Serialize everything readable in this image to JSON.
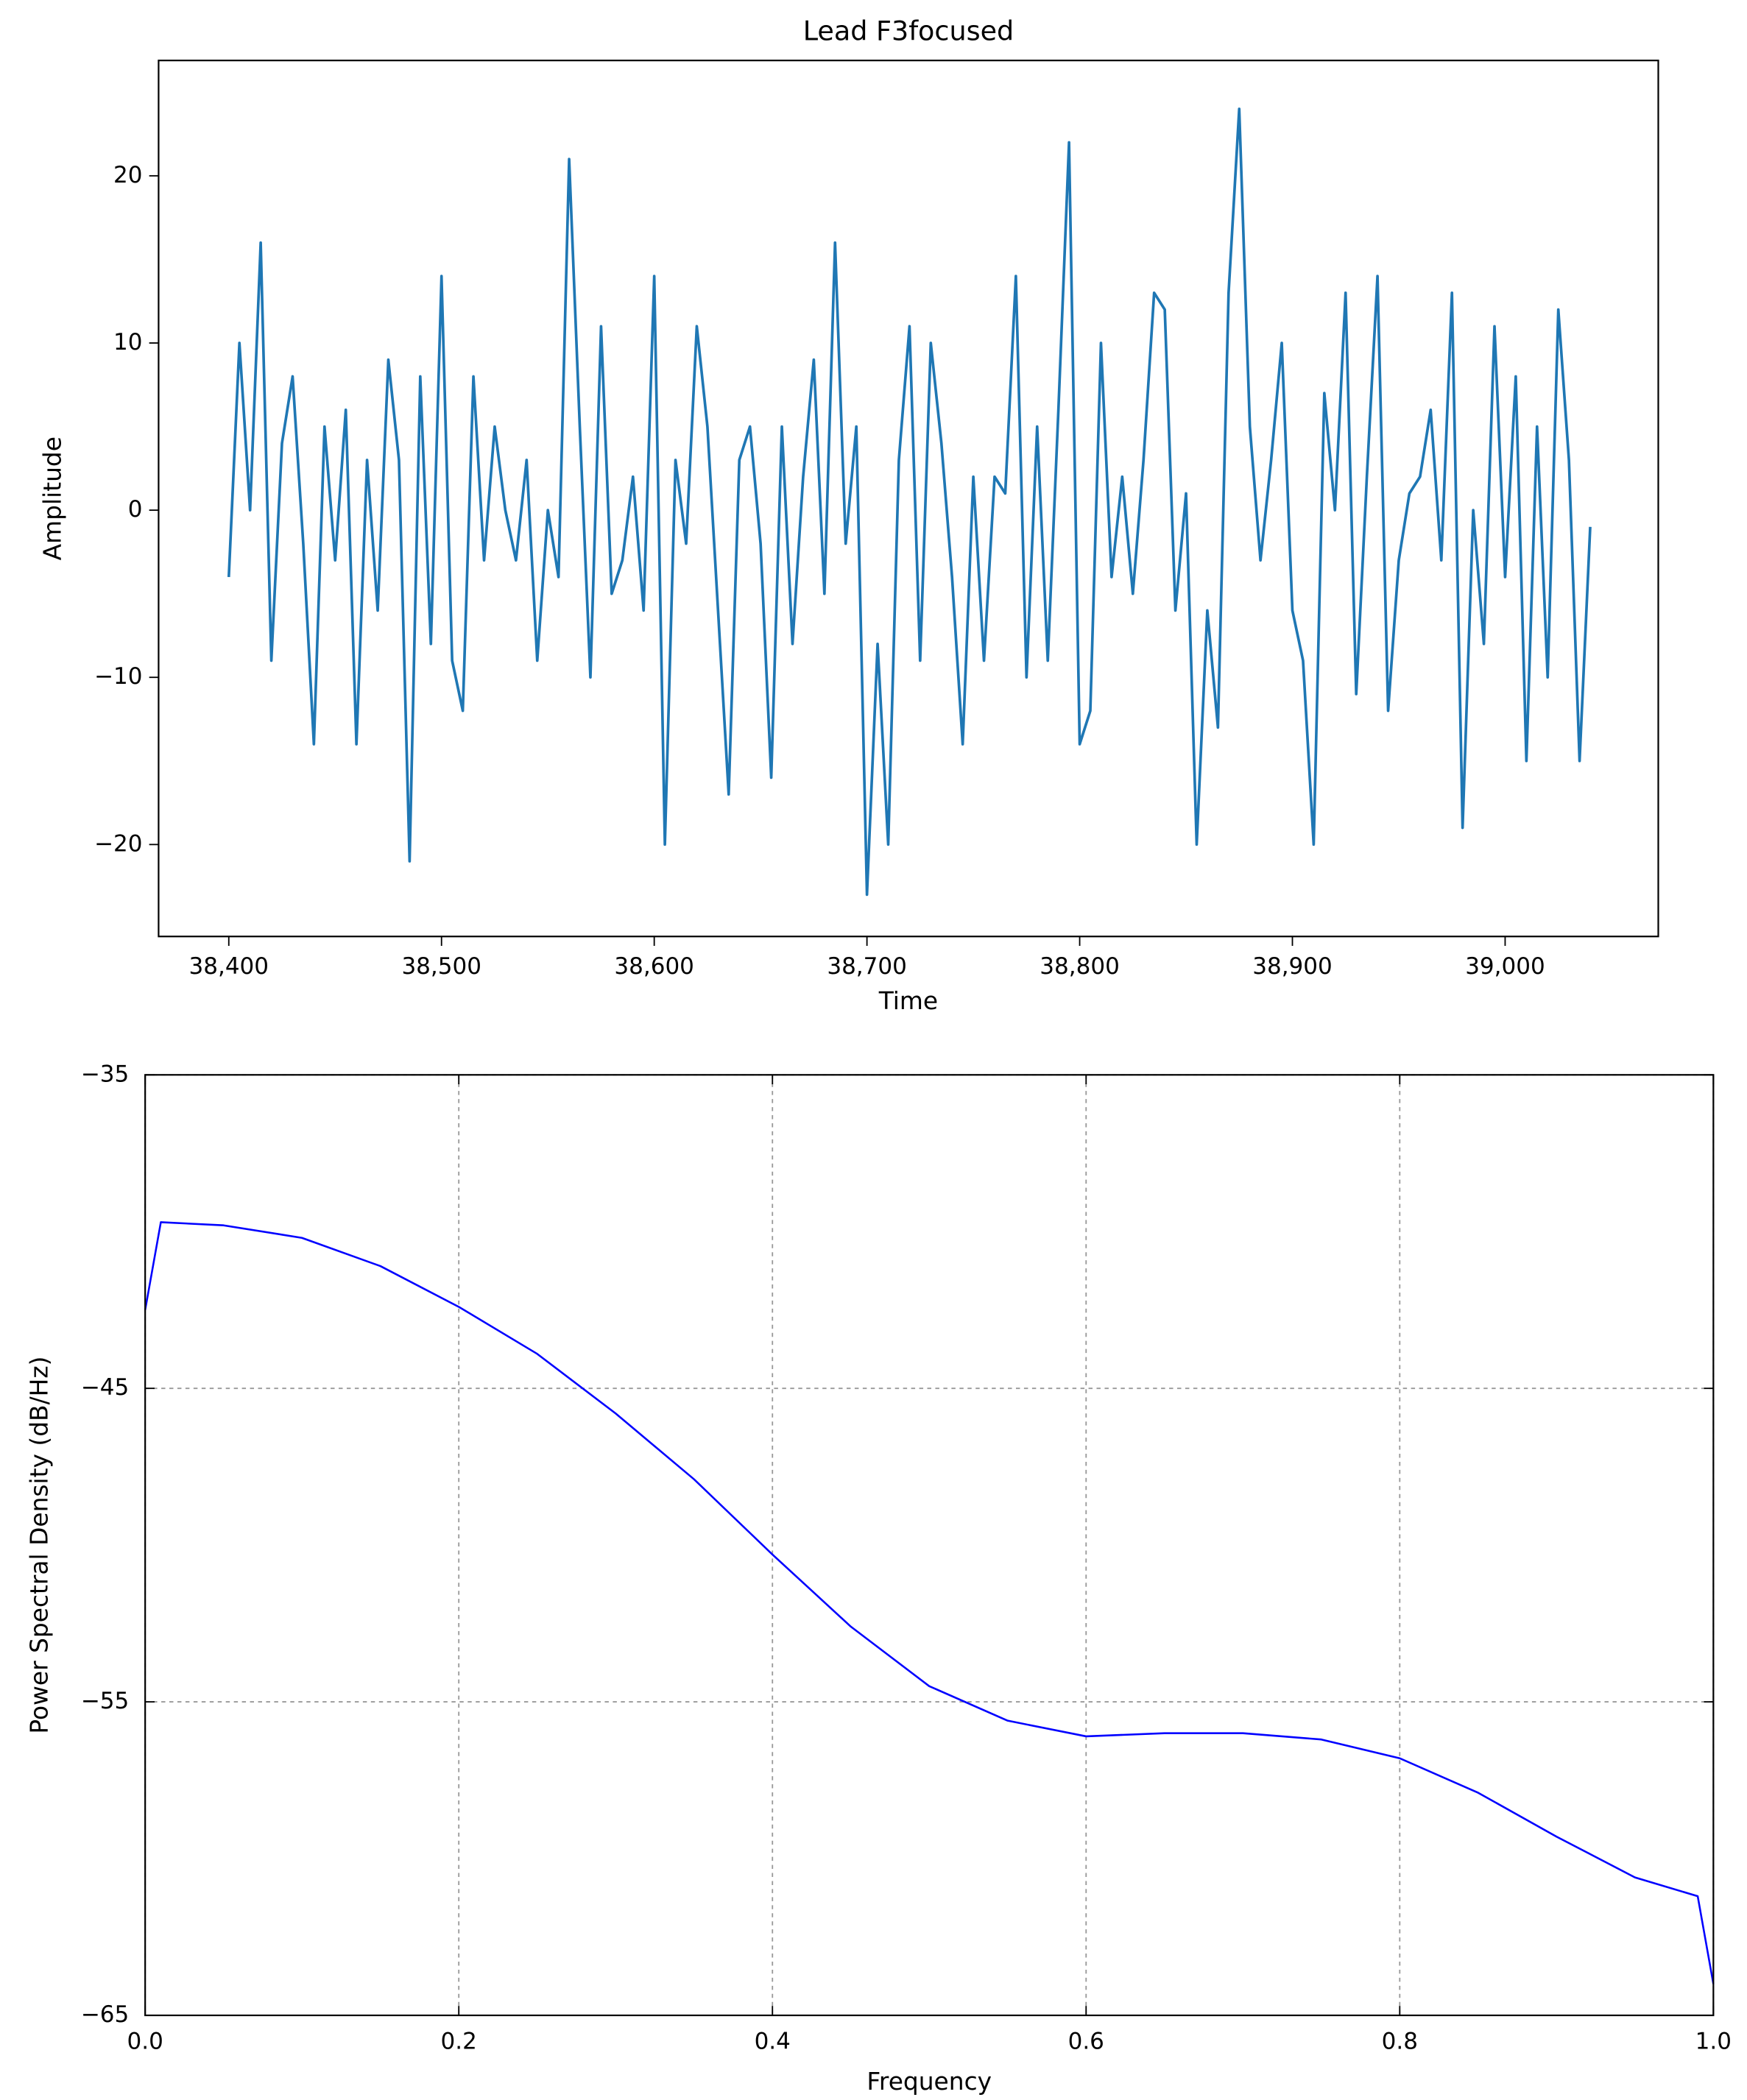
{
  "chart_data": [
    {
      "type": "line",
      "title": "Lead F3focused",
      "x_label": "Time",
      "y_label": "Amplitude",
      "x": [
        38400,
        38405,
        38410,
        38415,
        38420,
        38425,
        38430,
        38435,
        38440,
        38445,
        38450,
        38455,
        38460,
        38465,
        38470,
        38475,
        38480,
        38485,
        38490,
        38495,
        38500,
        38505,
        38510,
        38515,
        38520,
        38525,
        38530,
        38535,
        38540,
        38545,
        38550,
        38555,
        38560,
        38565,
        38570,
        38575,
        38580,
        38585,
        38590,
        38595,
        38600,
        38605,
        38610,
        38615,
        38620,
        38625,
        38630,
        38635,
        38640,
        38645,
        38650,
        38655,
        38660,
        38665,
        38670,
        38675,
        38680,
        38685,
        38690,
        38695,
        38700,
        38705,
        38710,
        38715,
        38720,
        38725,
        38730,
        38735,
        38740,
        38745,
        38750,
        38755,
        38760,
        38765,
        38770,
        38775,
        38780,
        38785,
        38790,
        38795,
        38800,
        38805,
        38810,
        38815,
        38820,
        38825,
        38830,
        38835,
        38840,
        38845,
        38850,
        38855,
        38860,
        38865,
        38870,
        38875,
        38880,
        38885,
        38890,
        38895,
        38900,
        38905,
        38910,
        38915,
        38920,
        38925,
        38930,
        38935,
        38940,
        38945,
        38950,
        38955,
        38960,
        38965,
        38970,
        38975,
        38980,
        38985,
        38990,
        38995,
        39000,
        39005,
        39010,
        39015,
        39020,
        39025,
        39030,
        39035,
        39040
      ],
      "values": [
        -4,
        10,
        0,
        16,
        -9,
        4,
        8,
        -2,
        -14,
        5,
        -3,
        6,
        -14,
        3,
        -6,
        9,
        3,
        -21,
        8,
        -8,
        14,
        -9,
        -12,
        8,
        -3,
        5,
        0,
        -3,
        3,
        -9,
        0,
        -4,
        21,
        5,
        -10,
        11,
        -5,
        -3,
        2,
        -6,
        14,
        -20,
        3,
        -2,
        11,
        5,
        -6,
        -17,
        3,
        5,
        -2,
        -16,
        5,
        -8,
        2,
        9,
        -5,
        16,
        -2,
        5,
        -23,
        -8,
        -20,
        3,
        11,
        -9,
        10,
        4,
        -4,
        -14,
        2,
        -9,
        2,
        1,
        14,
        -10,
        5,
        -9,
        6,
        22,
        -14,
        -12,
        10,
        -4,
        2,
        -5,
        3,
        13,
        12,
        -6,
        1,
        -20,
        -6,
        -13,
        13,
        24,
        5,
        -3,
        3,
        10,
        -6,
        -9,
        -20,
        7,
        0,
        13,
        -11,
        2,
        14,
        -12,
        -3,
        1,
        2,
        6,
        -3,
        13,
        -19,
        0,
        -8,
        11,
        -4,
        8,
        -15,
        5,
        -10,
        12,
        3,
        -15,
        -1
      ],
      "color": "#1f77b4",
      "xlim": [
        38367,
        39072
      ],
      "xticks": [
        {
          "value": 38400,
          "label": "38,400"
        },
        {
          "value": 38500,
          "label": "38,500"
        },
        {
          "value": 38600,
          "label": "38,600"
        },
        {
          "value": 38700,
          "label": "38,700"
        },
        {
          "value": 38800,
          "label": "38,800"
        },
        {
          "value": 38900,
          "label": "38,900"
        },
        {
          "value": 39000,
          "label": "39,000"
        }
      ],
      "ylim": [
        -25.5,
        26.9
      ],
      "yticks": [
        {
          "value": -20,
          "label": "−20"
        },
        {
          "value": -10,
          "label": "−10"
        },
        0,
        10,
        20
      ],
      "grid": false
    },
    {
      "type": "line",
      "x_label": "Frequency",
      "y_label": "Power Spectral Density (dB/Hz)",
      "x": [
        0,
        0.01,
        0.05,
        0.1,
        0.15,
        0.2,
        0.25,
        0.3,
        0.35,
        0.4,
        0.45,
        0.5,
        0.55,
        0.6,
        0.65,
        0.7,
        0.75,
        0.8,
        0.85,
        0.9,
        0.95,
        0.99,
        1.0
      ],
      "values": [
        -42.5,
        -39.7,
        -39.8,
        -40.2,
        -41.1,
        -42.4,
        -43.9,
        -45.8,
        -47.9,
        -50.3,
        -52.6,
        -54.5,
        -55.6,
        -56.1,
        -56.0,
        -56.0,
        -56.2,
        -56.8,
        -57.9,
        -59.3,
        -60.6,
        -61.2,
        -64
      ],
      "color": "#0000ff",
      "xlim": [
        0,
        1
      ],
      "xticks": [
        {
          "value": 0,
          "label": "0.0"
        },
        0.2,
        0.4,
        0.6,
        0.8,
        {
          "value": 1,
          "label": "1.0"
        }
      ],
      "ylim": [
        -65,
        -35
      ],
      "yticks": [
        {
          "value": -65,
          "label": "−65"
        },
        {
          "value": -55,
          "label": "−55"
        },
        {
          "value": -45,
          "label": "−45"
        },
        {
          "value": -35,
          "label": "−35"
        }
      ],
      "grid": true
    }
  ]
}
